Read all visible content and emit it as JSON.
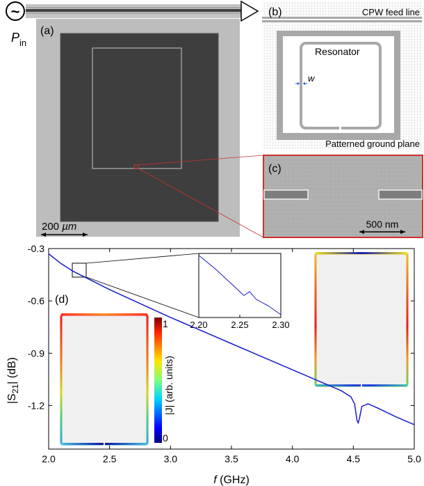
{
  "source": {
    "symbol": "~",
    "power_main": "P",
    "power_sub": "in"
  },
  "panel_a": {
    "label": "(a)",
    "scalebar_value": "200",
    "scalebar_unit": "µm"
  },
  "panel_b": {
    "label": "(b)",
    "feed_line_label": "CPW feed line",
    "resonator_label": "Resonator",
    "width_label": "w",
    "ground_plane_label": "Patterned ground plane"
  },
  "panel_c": {
    "label": "(c)",
    "scalebar_label": "500 nm"
  },
  "panel_d": {
    "label": "(d)",
    "colorbar_label": "|J| (arb. units)",
    "colorbar_max": "1",
    "colorbar_min": "0"
  },
  "chart_data": {
    "type": "line",
    "xlabel_main": "f",
    "xlabel_unit": "(GHz)",
    "ylabel_main": "|S",
    "ylabel_sub": "21",
    "ylabel_rest": "| (dB)",
    "xlim": [
      2.0,
      5.0
    ],
    "ylim": [
      -1.45,
      -0.3
    ],
    "x_ticks": [
      "2.0",
      "2.5",
      "3.0",
      "3.5",
      "4.0",
      "4.5",
      "5.0"
    ],
    "y_ticks": [
      "-0.3",
      "-0.6",
      "-0.9",
      "-1.2"
    ],
    "y_tick_values": [
      -0.3,
      -0.6,
      -0.9,
      -1.2
    ],
    "x_tick_values": [
      2.0,
      2.5,
      3.0,
      3.5,
      4.0,
      4.5,
      5.0
    ],
    "line_color": "#1a1acc",
    "series": [
      {
        "x": [
          2.0,
          2.1,
          2.2,
          2.3,
          2.5,
          2.75,
          3.0,
          3.25,
          3.5,
          3.75,
          4.0,
          4.25,
          4.4,
          4.48,
          4.51,
          4.53,
          4.54,
          4.55,
          4.57,
          4.62,
          4.7,
          4.85,
          5.0
        ],
        "y": [
          -0.33,
          -0.385,
          -0.43,
          -0.465,
          -0.535,
          -0.615,
          -0.695,
          -0.77,
          -0.845,
          -0.92,
          -0.995,
          -1.07,
          -1.115,
          -1.15,
          -1.19,
          -1.285,
          -1.3,
          -1.275,
          -1.205,
          -1.19,
          -1.215,
          -1.265,
          -1.31
        ]
      }
    ],
    "inset": {
      "xlim": [
        2.2,
        2.3
      ],
      "x_ticks": [
        "2.20",
        "2.25",
        "2.30"
      ],
      "x_tick_values": [
        2.2,
        2.25,
        2.3
      ],
      "ylim": [
        -0.485,
        -0.418
      ],
      "x": [
        2.2,
        2.22,
        2.24,
        2.255,
        2.262,
        2.27,
        2.285,
        2.3
      ],
      "y": [
        -0.42,
        -0.434,
        -0.45,
        -0.462,
        -0.458,
        -0.466,
        -0.473,
        -0.482
      ]
    }
  }
}
